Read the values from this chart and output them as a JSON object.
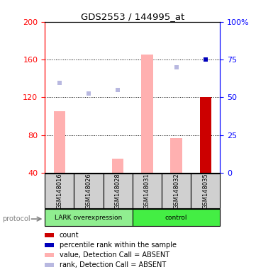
{
  "title": "GDS2553 / 144995_at",
  "samples": [
    "GSM148016",
    "GSM148026",
    "GSM148028",
    "GSM148031",
    "GSM148032",
    "GSM148035"
  ],
  "ylim_left": [
    40,
    200
  ],
  "yticks_left": [
    40,
    80,
    120,
    160,
    200
  ],
  "yticks_right": [
    0,
    25,
    50,
    75,
    100
  ],
  "ytick_labels_right": [
    "0",
    "25",
    "50",
    "75",
    "100%"
  ],
  "bar_values": [
    105,
    40,
    55,
    165,
    77,
    120
  ],
  "bar_absent": [
    true,
    true,
    true,
    true,
    true,
    false
  ],
  "rank_values": [
    135,
    124,
    128,
    null,
    152,
    null
  ],
  "rank_absent": [
    true,
    true,
    true,
    false,
    true,
    false
  ],
  "percentile_values": [
    null,
    null,
    null,
    null,
    null,
    160
  ],
  "bar_color_present": "#cc0000",
  "bar_color_absent": "#ffb0b0",
  "rank_color_absent": "#b8b8e0",
  "percentile_color": "#0000bb",
  "background_color": "#ffffff",
  "lark_group_color": "#90ee90",
  "control_group_color": "#44ee44",
  "sample_box_color": "#d0d0d0",
  "legend_items": [
    "count",
    "percentile rank within the sample",
    "value, Detection Call = ABSENT",
    "rank, Detection Call = ABSENT"
  ],
  "legend_colors": [
    "#cc0000",
    "#0000bb",
    "#ffb0b0",
    "#b8b8e0"
  ]
}
